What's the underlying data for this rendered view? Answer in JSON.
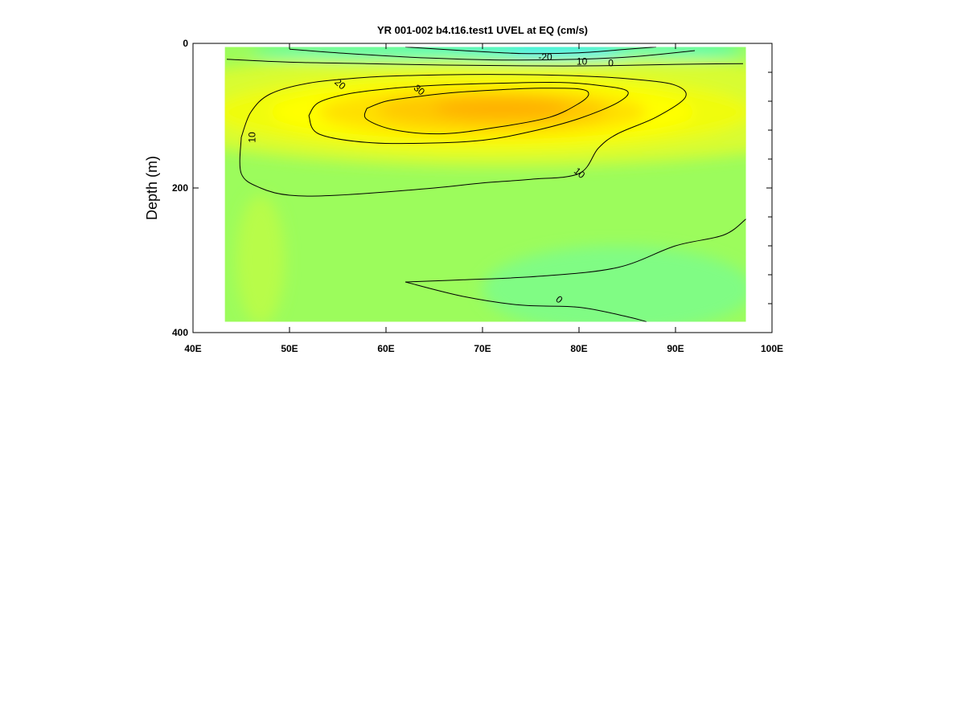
{
  "chart_data": {
    "type": "heatmap",
    "title": "YR 001-002 b4.t16.test1 UVEL at EQ (cm/s)",
    "xlabel": "",
    "ylabel": "Depth (m)",
    "xlim": [
      40,
      100
    ],
    "ylim": [
      0,
      400
    ],
    "y_inverted": true,
    "x_ticks": [
      {
        "value": 40,
        "label": "40E"
      },
      {
        "value": 50,
        "label": "50E"
      },
      {
        "value": 60,
        "label": "60E"
      },
      {
        "value": 70,
        "label": "70E"
      },
      {
        "value": 80,
        "label": "80E"
      },
      {
        "value": 90,
        "label": "90E"
      },
      {
        "value": 100,
        "label": "100E"
      }
    ],
    "y_ticks": [
      {
        "value": 0,
        "label": "0"
      },
      {
        "value": 200,
        "label": "200"
      },
      {
        "value": 400,
        "label": "400"
      }
    ],
    "y_minor_ticks": [
      40,
      80,
      120,
      160,
      240,
      280,
      320,
      360
    ],
    "data_extent": {
      "lon": [
        43.3,
        97.3
      ],
      "depth": [
        5,
        385
      ]
    },
    "background_color": "#9cfc5c",
    "colors": {
      "neg_strong": "#00f0fa",
      "neg_weak": "#4cfcb0",
      "zero": "#80fc84",
      "weak_pos": "#a8fc58",
      "mid_pos": "#d8fc30",
      "yellow": "#ffff00",
      "orange_light": "#ffd000",
      "orange": "#ffb000"
    },
    "color_blobs": [
      {
        "lon": 72,
        "depth": 90,
        "rlon": 40,
        "rdepth": 80,
        "color": "#d8fc30"
      },
      {
        "lon": 70,
        "depth": 95,
        "rlon": 28,
        "rdepth": 55,
        "color": "#f0fc10"
      },
      {
        "lon": 70,
        "depth": 95,
        "rlon": 22,
        "rdepth": 45,
        "color": "#ffff00"
      },
      {
        "lon": 70,
        "depth": 95,
        "rlon": 17,
        "rdepth": 35,
        "color": "#ffe000"
      },
      {
        "lon": 71,
        "depth": 92,
        "rlon": 12,
        "rdepth": 24,
        "color": "#ffc800"
      },
      {
        "lon": 72,
        "depth": 90,
        "rlon": 7,
        "rdepth": 14,
        "color": "#ffb000"
      },
      {
        "lon": 84,
        "depth": 340,
        "rlon": 14,
        "rdepth": 60,
        "color": "#80fc84"
      },
      {
        "lon": 74,
        "depth": 10,
        "rlon": 18,
        "rdepth": 12,
        "color": "#00f0fa"
      },
      {
        "lon": 60,
        "depth": 12,
        "rlon": 14,
        "rdepth": 10,
        "color": "#40fcc0"
      },
      {
        "lon": 90,
        "depth": 10,
        "rlon": 7,
        "rdepth": 10,
        "color": "#40fcc0"
      },
      {
        "lon": 47,
        "depth": 300,
        "rlon": 2.5,
        "rdepth": 90,
        "color": "#b8fc48"
      }
    ],
    "contours": [
      {
        "level": 10,
        "points": [
          [
            45,
            130
          ],
          [
            46,
            95
          ],
          [
            48,
            70
          ],
          [
            52,
            55
          ],
          [
            58,
            47
          ],
          [
            64,
            44
          ],
          [
            72,
            43
          ],
          [
            80,
            45
          ],
          [
            86,
            50
          ],
          [
            90,
            58
          ],
          [
            91,
            75
          ],
          [
            88,
            102
          ],
          [
            84,
            125
          ],
          [
            82,
            145
          ],
          [
            80,
            180
          ],
          [
            75,
            188
          ],
          [
            70,
            193
          ],
          [
            65,
            200
          ],
          [
            55,
            210
          ],
          [
            50,
            210
          ],
          [
            47,
            200
          ],
          [
            45,
            180
          ],
          [
            45,
            130
          ]
        ]
      },
      {
        "level": 20,
        "points": [
          [
            52,
            100
          ],
          [
            53,
            82
          ],
          [
            56,
            70
          ],
          [
            60,
            63
          ],
          [
            65,
            58
          ],
          [
            72,
            55
          ],
          [
            78,
            54
          ],
          [
            82,
            58
          ],
          [
            85,
            66
          ],
          [
            84,
            82
          ],
          [
            80,
            104
          ],
          [
            75,
            122
          ],
          [
            70,
            134
          ],
          [
            64,
            138
          ],
          [
            58,
            137
          ],
          [
            53,
            125
          ],
          [
            52,
            100
          ]
        ]
      },
      {
        "level": 30,
        "points": [
          [
            58,
            90
          ],
          [
            60,
            80
          ],
          [
            63,
            74
          ],
          [
            67,
            68
          ],
          [
            72,
            64
          ],
          [
            76,
            62
          ],
          [
            80,
            63
          ],
          [
            81,
            70
          ],
          [
            80,
            83
          ],
          [
            77,
            102
          ],
          [
            72,
            115
          ],
          [
            66,
            125
          ],
          [
            61,
            120
          ],
          [
            58,
            105
          ],
          [
            58,
            90
          ]
        ]
      },
      {
        "level": 0,
        "points": [
          [
            43.5,
            22
          ],
          [
            50,
            26
          ],
          [
            58,
            28
          ],
          [
            66,
            30
          ],
          [
            74,
            31
          ],
          [
            82,
            31
          ],
          [
            90,
            29
          ],
          [
            97,
            28
          ]
        ]
      },
      {
        "level": -10,
        "points": [
          [
            50,
            8
          ],
          [
            56,
            14
          ],
          [
            64,
            20
          ],
          [
            72,
            23
          ],
          [
            80,
            22
          ],
          [
            86,
            18
          ],
          [
            92,
            10
          ]
        ]
      },
      {
        "level": -20,
        "points": [
          [
            62,
            5
          ],
          [
            68,
            10
          ],
          [
            74,
            14
          ],
          [
            80,
            13
          ],
          [
            85,
            8
          ],
          [
            88,
            5
          ]
        ]
      },
      {
        "level": 0,
        "points": [
          [
            62,
            330
          ],
          [
            68,
            327
          ],
          [
            76,
            322
          ],
          [
            84,
            310
          ],
          [
            90,
            280
          ],
          [
            95,
            265
          ],
          [
            97.3,
            243
          ]
        ]
      },
      {
        "level": 0,
        "points": [
          [
            62,
            330
          ],
          [
            68,
            350
          ],
          [
            74,
            362
          ],
          [
            80,
            365
          ],
          [
            85,
            378
          ],
          [
            87,
            385
          ]
        ]
      }
    ],
    "contour_labels": [
      {
        "text": "10",
        "lon": 46.2,
        "depth": 130,
        "rotate": -90
      },
      {
        "text": "20",
        "lon": 55.2,
        "depth": 57,
        "rotate": 40
      },
      {
        "text": "30",
        "lon": 63.4,
        "depth": 65,
        "rotate": 40
      },
      {
        "text": "10",
        "lon": 80.0,
        "depth": 180,
        "rotate": 40
      },
      {
        "text": "-20",
        "lon": 76.5,
        "depth": 20,
        "rotate": 0
      },
      {
        "text": "10",
        "lon": 80.3,
        "depth": 26,
        "rotate": 0
      },
      {
        "text": "0",
        "lon": 83.3,
        "depth": 28,
        "rotate": 0
      },
      {
        "text": "0",
        "lon": 77.9,
        "depth": 355,
        "rotate": 40
      }
    ]
  }
}
